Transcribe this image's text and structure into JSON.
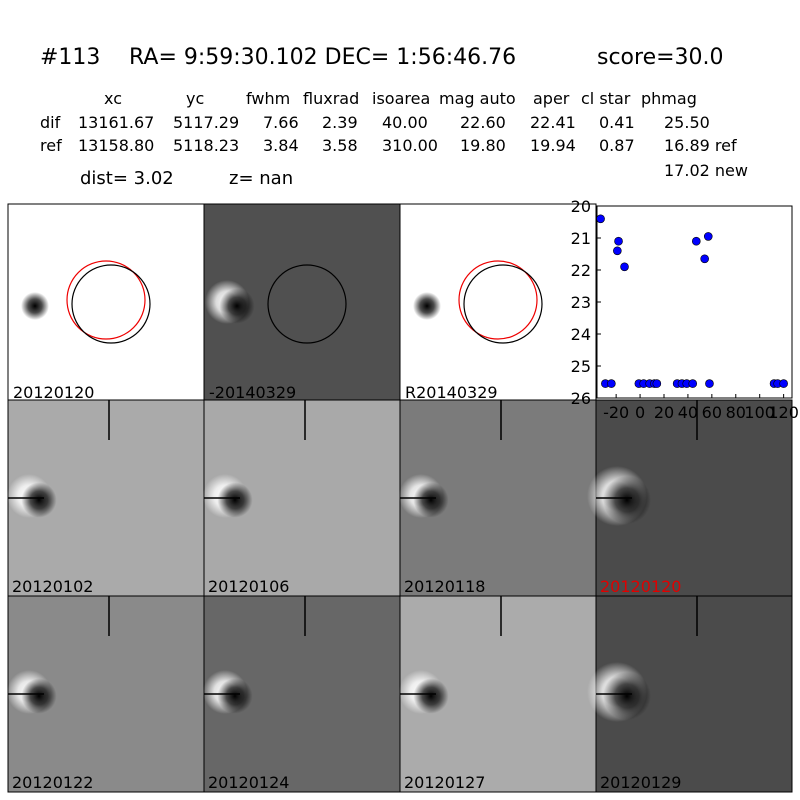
{
  "header": {
    "id": "#113",
    "coords": "RA= 9:59:30.102 DEC= 1:56:46.76",
    "score": "score=30.0"
  },
  "table": {
    "columns": [
      "xc",
      "yc",
      "fwhm",
      "fluxrad",
      "isoarea",
      "mag auto",
      "aper",
      "cl star",
      "phmag"
    ],
    "rows": [
      {
        "label": "dif",
        "values": [
          "13161.67",
          "5117.29",
          "7.66",
          "2.39",
          "40.00",
          "22.60",
          "22.41",
          "0.41",
          "25.50"
        ]
      },
      {
        "label": "ref",
        "values": [
          "13158.80",
          "5118.23",
          "3.84",
          "3.58",
          "310.00",
          "19.80",
          "19.94",
          "0.87",
          "16.89 ref"
        ]
      }
    ],
    "note": "17.02 new"
  },
  "dist": "dist=  3.02",
  "z": "z=   nan",
  "top_panels": [
    "20120120",
    "-20140329",
    "R20140329"
  ],
  "cutouts": [
    "20120102",
    "20120106",
    "20120118",
    "20120120",
    "20120122",
    "20120124",
    "20120127",
    "20120129"
  ],
  "chart_data": {
    "type": "scatter",
    "color": "#0000ff",
    "x": [
      -33,
      -19,
      -18,
      -13,
      47,
      54,
      57,
      -29,
      -24,
      -1,
      3,
      8,
      12,
      14,
      31,
      35,
      39,
      44,
      58,
      112,
      115,
      120
    ],
    "values": [
      20.4,
      21.4,
      21.1,
      21.9,
      21.1,
      21.65,
      20.95,
      25.55,
      25.55,
      25.55,
      25.55,
      25.55,
      25.55,
      25.55,
      25.55,
      25.55,
      25.55,
      25.55,
      25.55,
      25.55,
      25.55,
      25.55
    ],
    "xlim": [
      -36,
      127
    ],
    "ylim": [
      26,
      20
    ],
    "xticks": [
      -20,
      0,
      20,
      40,
      60,
      80,
      100,
      120
    ],
    "yticks": [
      20,
      21,
      22,
      23,
      24,
      25,
      26
    ]
  }
}
